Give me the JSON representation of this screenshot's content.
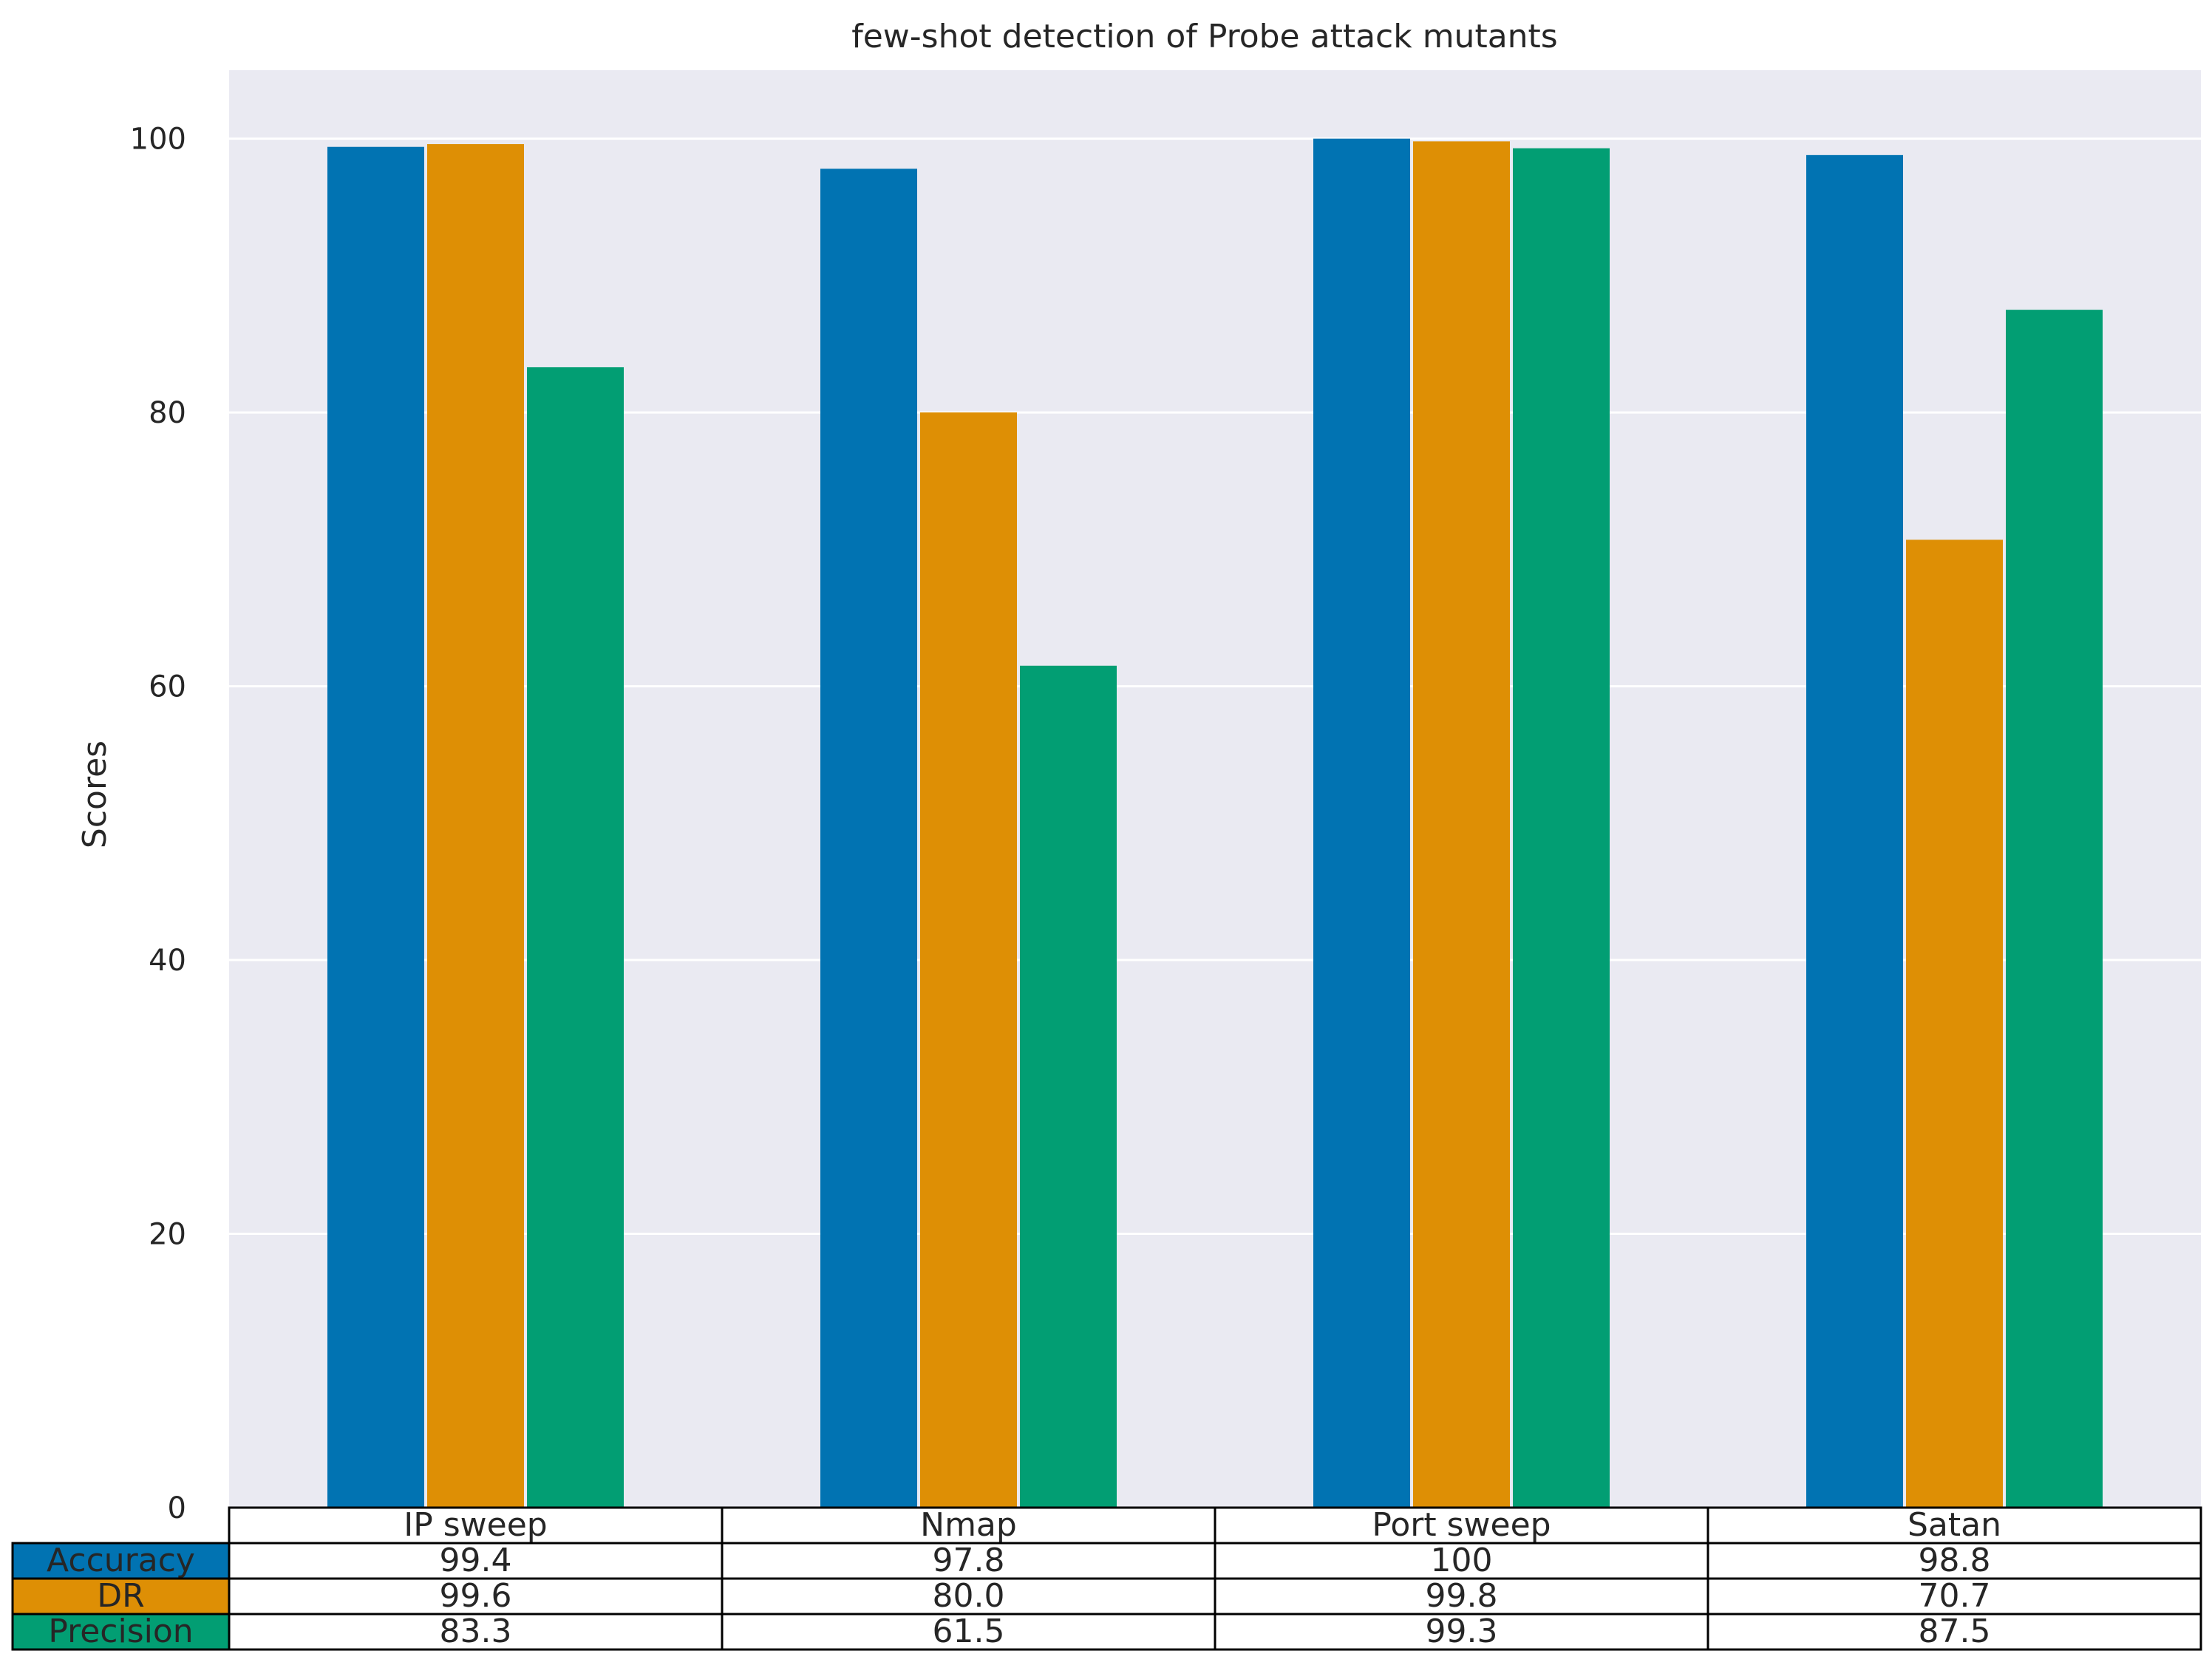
{
  "chart_data": {
    "type": "bar",
    "title": "few-shot detection of Probe attack mutants",
    "xlabel": "",
    "ylabel": "Scores",
    "ylim": [
      0,
      105
    ],
    "yticks": [
      0,
      20,
      40,
      60,
      80,
      100
    ],
    "grid": true,
    "legend": "table below axes",
    "categories": [
      "IP sweep",
      "Nmap",
      "Port sweep",
      "Satan"
    ],
    "series": [
      {
        "name": "Accuracy",
        "color": "#0173b2",
        "values": [
          99.4,
          97.8,
          100,
          98.8
        ],
        "labels": [
          "99.4",
          "97.8",
          "100",
          "98.8"
        ]
      },
      {
        "name": "DR",
        "color": "#de8f05",
        "values": [
          99.6,
          80.0,
          99.8,
          70.7
        ],
        "labels": [
          "99.6",
          "80.0",
          "99.8",
          "70.7"
        ]
      },
      {
        "name": "Precision",
        "color": "#029e73",
        "values": [
          83.3,
          61.5,
          99.3,
          87.5
        ],
        "labels": [
          "83.3",
          "61.5",
          "99.3",
          "87.5"
        ]
      }
    ],
    "colors": {
      "plot_background": "#eaeaf2",
      "grid": "#ffffff"
    }
  }
}
